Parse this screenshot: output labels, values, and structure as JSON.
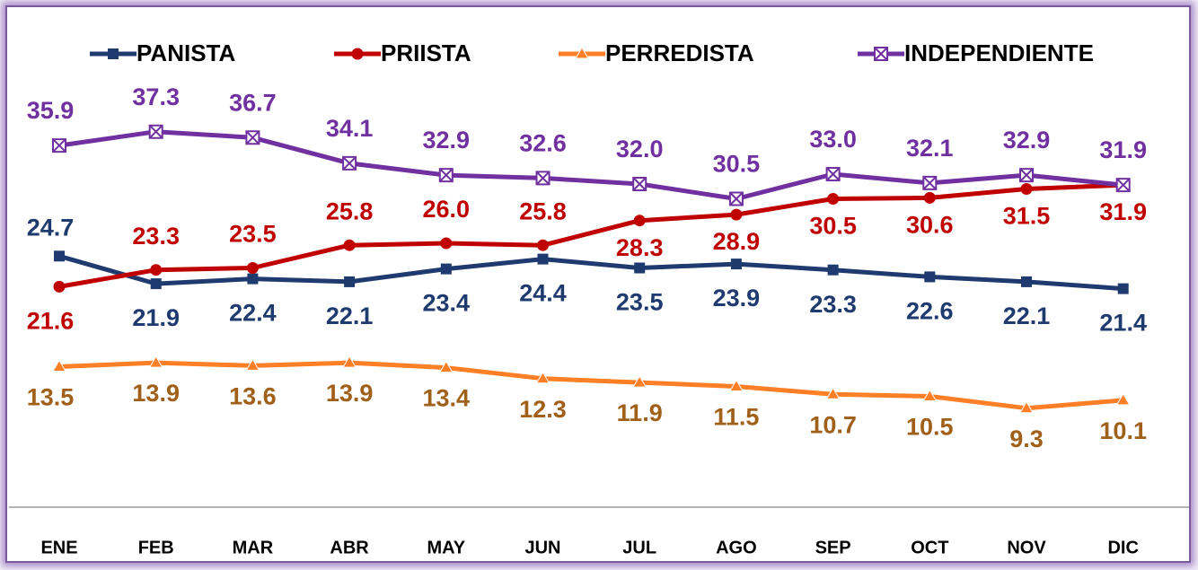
{
  "chart_data": {
    "type": "line",
    "categories": [
      "ENE",
      "FEB",
      "MAR",
      "ABR",
      "MAY",
      "JUN",
      "JUL",
      "AGO",
      "SEP",
      "OCT",
      "NOV",
      "DIC"
    ],
    "ylim": [
      0,
      48
    ],
    "series": [
      {
        "name": "PANISTA",
        "color": "#1f3a6e",
        "label_color": "#1f3a6e",
        "marker": "square",
        "values": [
          24.7,
          21.9,
          22.4,
          22.1,
          23.4,
          24.4,
          23.5,
          23.9,
          23.3,
          22.6,
          22.1,
          21.4
        ],
        "value_labels": [
          "24.7",
          "21.9",
          "22.4",
          "22.1",
          "23.4",
          "24.4",
          "23.5",
          "23.9",
          "23.3",
          "22.6",
          "22.1",
          "21.4"
        ]
      },
      {
        "name": "PRIISTA",
        "color": "#c00000",
        "label_color": "#c00000",
        "marker": "circle",
        "values": [
          21.6,
          23.3,
          23.5,
          25.8,
          26.0,
          25.8,
          28.3,
          28.9,
          30.5,
          30.6,
          31.5,
          31.9
        ],
        "value_labels": [
          "21.6",
          "23.3",
          "23.5",
          "25.8",
          "26.0",
          "25.8",
          "28.3",
          "28.9",
          "30.5",
          "30.6",
          "31.5",
          "31.9"
        ]
      },
      {
        "name": "PERREDISTA",
        "color": "#ff7f27",
        "label_color": "#a0601a",
        "marker": "triangle",
        "values": [
          13.5,
          13.9,
          13.6,
          13.9,
          13.4,
          12.3,
          11.9,
          11.5,
          10.7,
          10.5,
          9.3,
          10.1
        ],
        "value_labels": [
          "13.5",
          "13.9",
          "13.6",
          "13.9",
          "13.4",
          "12.3",
          "11.9",
          "11.5",
          "10.7",
          "10.5",
          "9.3",
          "10.1"
        ]
      },
      {
        "name": "INDEPENDIENTE",
        "color": "#7030a0",
        "label_color": "#7030a0",
        "marker": "xbox",
        "values": [
          35.9,
          37.3,
          36.7,
          34.1,
          32.9,
          32.6,
          32.0,
          30.5,
          33.0,
          32.1,
          32.9,
          31.9
        ],
        "value_labels": [
          "35.9",
          "37.3",
          "36.7",
          "34.1",
          "32.9",
          "32.6",
          "32.0",
          "30.5",
          "33.0",
          "32.1",
          "32.9",
          "31.9"
        ]
      }
    ]
  }
}
